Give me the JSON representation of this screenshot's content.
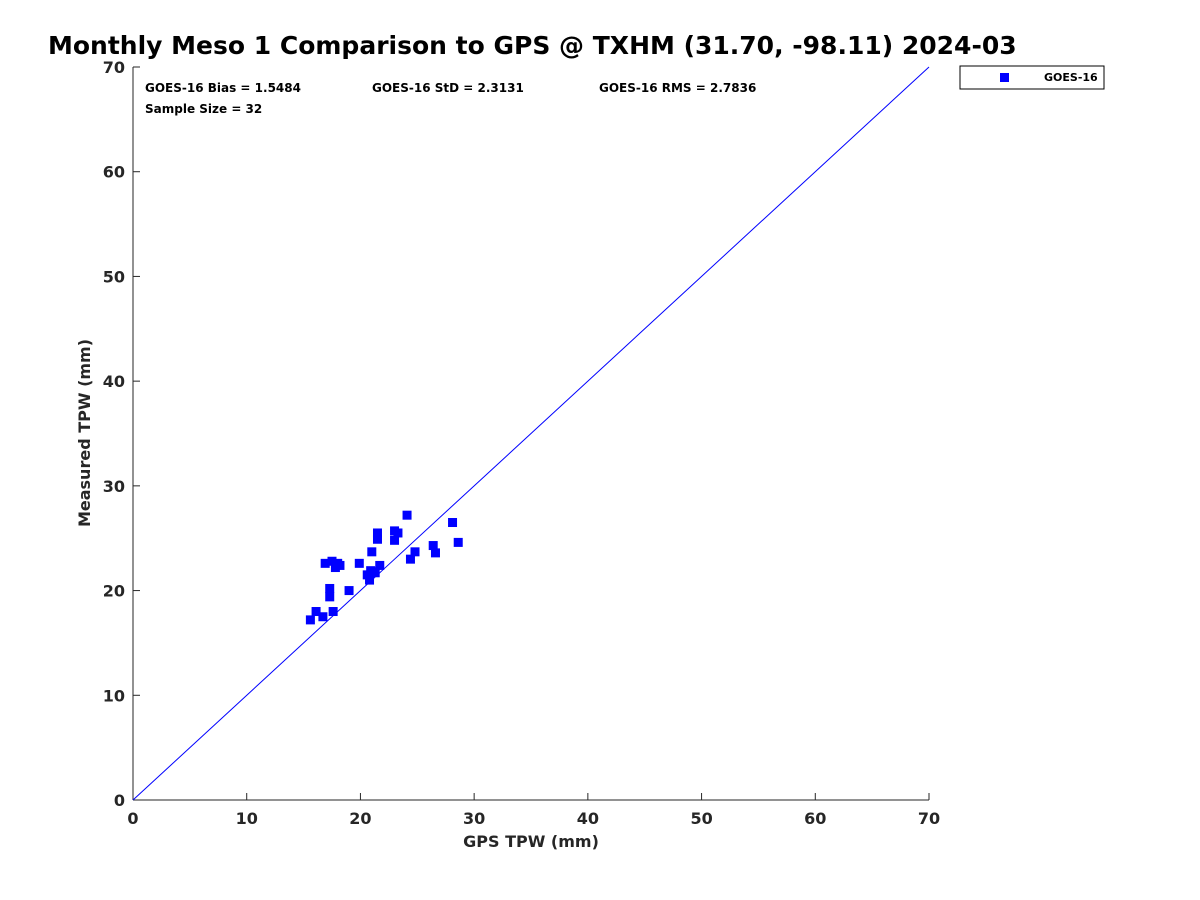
{
  "chart_data": {
    "type": "scatter",
    "title": "Monthly Meso 1 Comparison to GPS @ TXHM (31.70, -98.11) 2024-03",
    "xlabel": "GPS TPW (mm)",
    "ylabel": "Measured TPW (mm)",
    "xlim": [
      0,
      70
    ],
    "ylim": [
      0,
      70
    ],
    "xticks": [
      0,
      10,
      20,
      30,
      40,
      50,
      60,
      70
    ],
    "yticks": [
      0,
      10,
      20,
      30,
      40,
      50,
      60,
      70
    ],
    "grid": false,
    "legend_position": "top-right, outside plot",
    "reference_line": {
      "from": [
        0,
        0
      ],
      "to": [
        70,
        70
      ],
      "color": "#0000ff"
    },
    "stats": {
      "bias": "GOES-16 Bias = 1.5484",
      "std": "GOES-16 StD = 2.3131",
      "rms": "GOES-16 RMS = 2.7836",
      "sample": "Sample Size = 32"
    },
    "series": [
      {
        "name": "GOES-16",
        "color": "#0000ff",
        "marker": "square",
        "points": [
          [
            15.6,
            17.2
          ],
          [
            16.1,
            18.0
          ],
          [
            16.7,
            17.5
          ],
          [
            17.6,
            18.0
          ],
          [
            17.3,
            19.4
          ],
          [
            17.3,
            20.2
          ],
          [
            16.9,
            22.6
          ],
          [
            17.5,
            22.8
          ],
          [
            17.8,
            22.2
          ],
          [
            18.0,
            22.6
          ],
          [
            18.2,
            22.4
          ],
          [
            19.0,
            20.0
          ],
          [
            19.9,
            22.6
          ],
          [
            20.6,
            21.5
          ],
          [
            20.8,
            21.0
          ],
          [
            20.9,
            21.9
          ],
          [
            21.3,
            21.7
          ],
          [
            21.0,
            23.7
          ],
          [
            21.5,
            25.5
          ],
          [
            21.5,
            24.9
          ],
          [
            21.7,
            22.4
          ],
          [
            23.0,
            24.8
          ],
          [
            23.0,
            25.7
          ],
          [
            23.3,
            25.5
          ],
          [
            24.1,
            27.2
          ],
          [
            24.4,
            23.0
          ],
          [
            24.8,
            23.7
          ],
          [
            26.4,
            24.3
          ],
          [
            26.6,
            23.6
          ],
          [
            28.1,
            26.5
          ],
          [
            28.6,
            24.6
          ],
          [
            21.1,
            21.8
          ]
        ]
      }
    ]
  }
}
